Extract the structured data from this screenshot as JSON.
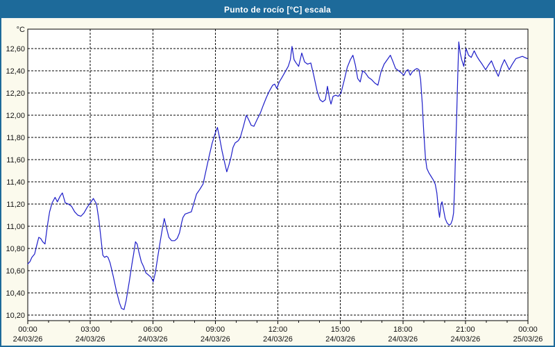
{
  "window": {
    "title": "Punto de rocío [°C] escala"
  },
  "colors": {
    "frame": "#1d6a9a",
    "titlebar_bg": "#1d6a9a",
    "titlebar_text": "#ffffff",
    "canvas_bg": "#fbfaed",
    "plot_bg": "#ffffff",
    "grid": "#000000",
    "axis_text": "#101010",
    "series_line": "#1c1cc8"
  },
  "chart_data": {
    "type": "line",
    "title": "Punto de rocío [°C] escala",
    "ylabel_unit": "°C",
    "ylim": [
      10.15,
      12.775
    ],
    "xlim_hours": [
      0,
      24
    ],
    "grid": "dashed",
    "legend_position": "none",
    "yticks": [
      {
        "v": 12.6,
        "label": "12,60"
      },
      {
        "v": 12.4,
        "label": "12,40"
      },
      {
        "v": 12.2,
        "label": "12,20"
      },
      {
        "v": 12.0,
        "label": "12,00"
      },
      {
        "v": 11.8,
        "label": "11,80"
      },
      {
        "v": 11.6,
        "label": "11,60"
      },
      {
        "v": 11.4,
        "label": "11,40"
      },
      {
        "v": 11.2,
        "label": "11,20"
      },
      {
        "v": 11.0,
        "label": "11,00"
      },
      {
        "v": 10.8,
        "label": "10,80"
      },
      {
        "v": 10.6,
        "label": "10,60"
      },
      {
        "v": 10.4,
        "label": "10,40"
      },
      {
        "v": 10.2,
        "label": "10,20"
      }
    ],
    "xticks_major": [
      {
        "hour": 0,
        "time": "00:00",
        "date": "24/03/26"
      },
      {
        "hour": 3,
        "time": "03:00",
        "date": "24/03/26"
      },
      {
        "hour": 6,
        "time": "06:00",
        "date": "24/03/26"
      },
      {
        "hour": 9,
        "time": "09:00",
        "date": "24/03/26"
      },
      {
        "hour": 12,
        "time": "12:00",
        "date": "24/03/26"
      },
      {
        "hour": 15,
        "time": "15:00",
        "date": "24/03/26"
      },
      {
        "hour": 18,
        "time": "18:00",
        "date": "24/03/26"
      },
      {
        "hour": 21,
        "time": "21:00",
        "date": "24/03/26"
      },
      {
        "hour": 24,
        "time": "00:00",
        "date": "25/03/26"
      }
    ],
    "xticks_minor_every_hours": 1,
    "series": [
      {
        "name": "Punto de rocío",
        "points": [
          [
            0,
            10.66
          ],
          [
            0.1,
            10.68
          ],
          [
            0.2,
            10.72
          ],
          [
            0.33,
            10.75
          ],
          [
            0.42,
            10.82
          ],
          [
            0.53,
            10.9
          ],
          [
            0.62,
            10.89
          ],
          [
            0.72,
            10.86
          ],
          [
            0.83,
            10.84
          ],
          [
            0.94,
            11.0
          ],
          [
            1.05,
            11.13
          ],
          [
            1.17,
            11.21
          ],
          [
            1.31,
            11.26
          ],
          [
            1.42,
            11.22
          ],
          [
            1.55,
            11.27
          ],
          [
            1.66,
            11.3
          ],
          [
            1.8,
            11.21
          ],
          [
            1.95,
            11.2
          ],
          [
            2.1,
            11.18
          ],
          [
            2.25,
            11.13
          ],
          [
            2.4,
            11.1
          ],
          [
            2.55,
            11.09
          ],
          [
            2.7,
            11.12
          ],
          [
            2.85,
            11.17
          ],
          [
            3.0,
            11.21
          ],
          [
            3.15,
            11.25
          ],
          [
            3.3,
            11.2
          ],
          [
            3.42,
            11.05
          ],
          [
            3.52,
            10.88
          ],
          [
            3.6,
            10.74
          ],
          [
            3.68,
            10.72
          ],
          [
            3.78,
            10.73
          ],
          [
            3.85,
            10.72
          ],
          [
            3.95,
            10.67
          ],
          [
            4.1,
            10.55
          ],
          [
            4.25,
            10.42
          ],
          [
            4.4,
            10.31
          ],
          [
            4.5,
            10.26
          ],
          [
            4.62,
            10.25
          ],
          [
            4.72,
            10.33
          ],
          [
            4.87,
            10.5
          ],
          [
            5.0,
            10.66
          ],
          [
            5.08,
            10.75
          ],
          [
            5.17,
            10.86
          ],
          [
            5.25,
            10.84
          ],
          [
            5.33,
            10.77
          ],
          [
            5.45,
            10.68
          ],
          [
            5.55,
            10.64
          ],
          [
            5.67,
            10.58
          ],
          [
            5.8,
            10.56
          ],
          [
            5.92,
            10.54
          ],
          [
            6.02,
            10.5
          ],
          [
            6.12,
            10.58
          ],
          [
            6.25,
            10.74
          ],
          [
            6.37,
            10.88
          ],
          [
            6.45,
            10.97
          ],
          [
            6.55,
            11.07
          ],
          [
            6.65,
            10.99
          ],
          [
            6.77,
            10.9
          ],
          [
            6.9,
            10.87
          ],
          [
            7.05,
            10.87
          ],
          [
            7.17,
            10.89
          ],
          [
            7.28,
            10.94
          ],
          [
            7.38,
            11.03
          ],
          [
            7.45,
            11.08
          ],
          [
            7.55,
            11.11
          ],
          [
            7.7,
            11.12
          ],
          [
            7.85,
            11.13
          ],
          [
            7.99,
            11.22
          ],
          [
            8.1,
            11.29
          ],
          [
            8.25,
            11.33
          ],
          [
            8.41,
            11.38
          ],
          [
            8.55,
            11.5
          ],
          [
            8.7,
            11.63
          ],
          [
            8.85,
            11.75
          ],
          [
            9.0,
            11.84
          ],
          [
            9.1,
            11.89
          ],
          [
            9.2,
            11.8
          ],
          [
            9.32,
            11.68
          ],
          [
            9.45,
            11.57
          ],
          [
            9.55,
            11.49
          ],
          [
            9.65,
            11.55
          ],
          [
            9.75,
            11.62
          ],
          [
            9.85,
            11.71
          ],
          [
            9.95,
            11.75
          ],
          [
            10.1,
            11.77
          ],
          [
            10.2,
            11.8
          ],
          [
            10.35,
            11.9
          ],
          [
            10.49,
            12.0
          ],
          [
            10.6,
            11.96
          ],
          [
            10.72,
            11.91
          ],
          [
            10.85,
            11.9
          ],
          [
            11.0,
            11.96
          ],
          [
            11.16,
            12.02
          ],
          [
            11.3,
            12.09
          ],
          [
            11.45,
            12.16
          ],
          [
            11.6,
            12.22
          ],
          [
            11.75,
            12.27
          ],
          [
            11.85,
            12.28
          ],
          [
            11.95,
            12.24
          ],
          [
            12.07,
            12.3
          ],
          [
            12.2,
            12.34
          ],
          [
            12.35,
            12.39
          ],
          [
            12.5,
            12.44
          ],
          [
            12.6,
            12.5
          ],
          [
            12.68,
            12.62
          ],
          [
            12.78,
            12.5
          ],
          [
            12.88,
            12.47
          ],
          [
            13.0,
            12.44
          ],
          [
            13.15,
            12.56
          ],
          [
            13.28,
            12.48
          ],
          [
            13.42,
            12.46
          ],
          [
            13.58,
            12.47
          ],
          [
            13.72,
            12.36
          ],
          [
            13.88,
            12.22
          ],
          [
            14.02,
            12.14
          ],
          [
            14.15,
            12.12
          ],
          [
            14.28,
            12.14
          ],
          [
            14.38,
            12.26
          ],
          [
            14.48,
            12.15
          ],
          [
            14.55,
            12.1
          ],
          [
            14.65,
            12.17
          ],
          [
            14.78,
            12.18
          ],
          [
            14.9,
            12.17
          ],
          [
            15.03,
            12.2
          ],
          [
            15.18,
            12.31
          ],
          [
            15.33,
            12.43
          ],
          [
            15.48,
            12.5
          ],
          [
            15.6,
            12.54
          ],
          [
            15.72,
            12.45
          ],
          [
            15.83,
            12.33
          ],
          [
            15.95,
            12.3
          ],
          [
            16.07,
            12.4
          ],
          [
            16.2,
            12.38
          ],
          [
            16.35,
            12.34
          ],
          [
            16.5,
            12.32
          ],
          [
            16.65,
            12.29
          ],
          [
            16.8,
            12.27
          ],
          [
            16.95,
            12.39
          ],
          [
            17.1,
            12.46
          ],
          [
            17.25,
            12.5
          ],
          [
            17.4,
            12.54
          ],
          [
            17.53,
            12.48
          ],
          [
            17.65,
            12.42
          ],
          [
            17.8,
            12.4
          ],
          [
            17.93,
            12.38
          ],
          [
            18.05,
            12.36
          ],
          [
            18.15,
            12.4
          ],
          [
            18.25,
            12.41
          ],
          [
            18.35,
            12.36
          ],
          [
            18.45,
            12.39
          ],
          [
            18.57,
            12.41
          ],
          [
            18.67,
            12.42
          ],
          [
            18.77,
            12.41
          ],
          [
            18.85,
            12.32
          ],
          [
            18.93,
            12.1
          ],
          [
            19.0,
            11.85
          ],
          [
            19.08,
            11.62
          ],
          [
            19.15,
            11.52
          ],
          [
            19.25,
            11.48
          ],
          [
            19.35,
            11.45
          ],
          [
            19.45,
            11.42
          ],
          [
            19.55,
            11.38
          ],
          [
            19.63,
            11.3
          ],
          [
            19.7,
            11.16
          ],
          [
            19.76,
            11.08
          ],
          [
            19.83,
            11.2
          ],
          [
            19.88,
            11.22
          ],
          [
            19.95,
            11.15
          ],
          [
            20.03,
            11.07
          ],
          [
            20.12,
            11.03
          ],
          [
            20.22,
            11.01
          ],
          [
            20.3,
            11.02
          ],
          [
            20.38,
            11.06
          ],
          [
            20.43,
            11.12
          ],
          [
            20.48,
            11.35
          ],
          [
            20.53,
            11.7
          ],
          [
            20.58,
            12.0
          ],
          [
            20.63,
            12.35
          ],
          [
            20.68,
            12.66
          ],
          [
            20.75,
            12.56
          ],
          [
            20.82,
            12.5
          ],
          [
            20.92,
            12.44
          ],
          [
            21.03,
            12.6
          ],
          [
            21.15,
            12.54
          ],
          [
            21.28,
            12.52
          ],
          [
            21.42,
            12.58
          ],
          [
            21.55,
            12.53
          ],
          [
            21.65,
            12.5
          ],
          [
            21.8,
            12.46
          ],
          [
            21.97,
            12.41
          ],
          [
            22.1,
            12.45
          ],
          [
            22.25,
            12.49
          ],
          [
            22.4,
            12.42
          ],
          [
            22.58,
            12.35
          ],
          [
            22.73,
            12.44
          ],
          [
            22.87,
            12.5
          ],
          [
            23.0,
            12.45
          ],
          [
            23.1,
            12.41
          ],
          [
            23.25,
            12.46
          ],
          [
            23.42,
            12.51
          ],
          [
            23.58,
            12.52
          ],
          [
            23.73,
            12.53
          ],
          [
            23.85,
            12.52
          ],
          [
            23.97,
            12.51
          ]
        ]
      }
    ]
  }
}
